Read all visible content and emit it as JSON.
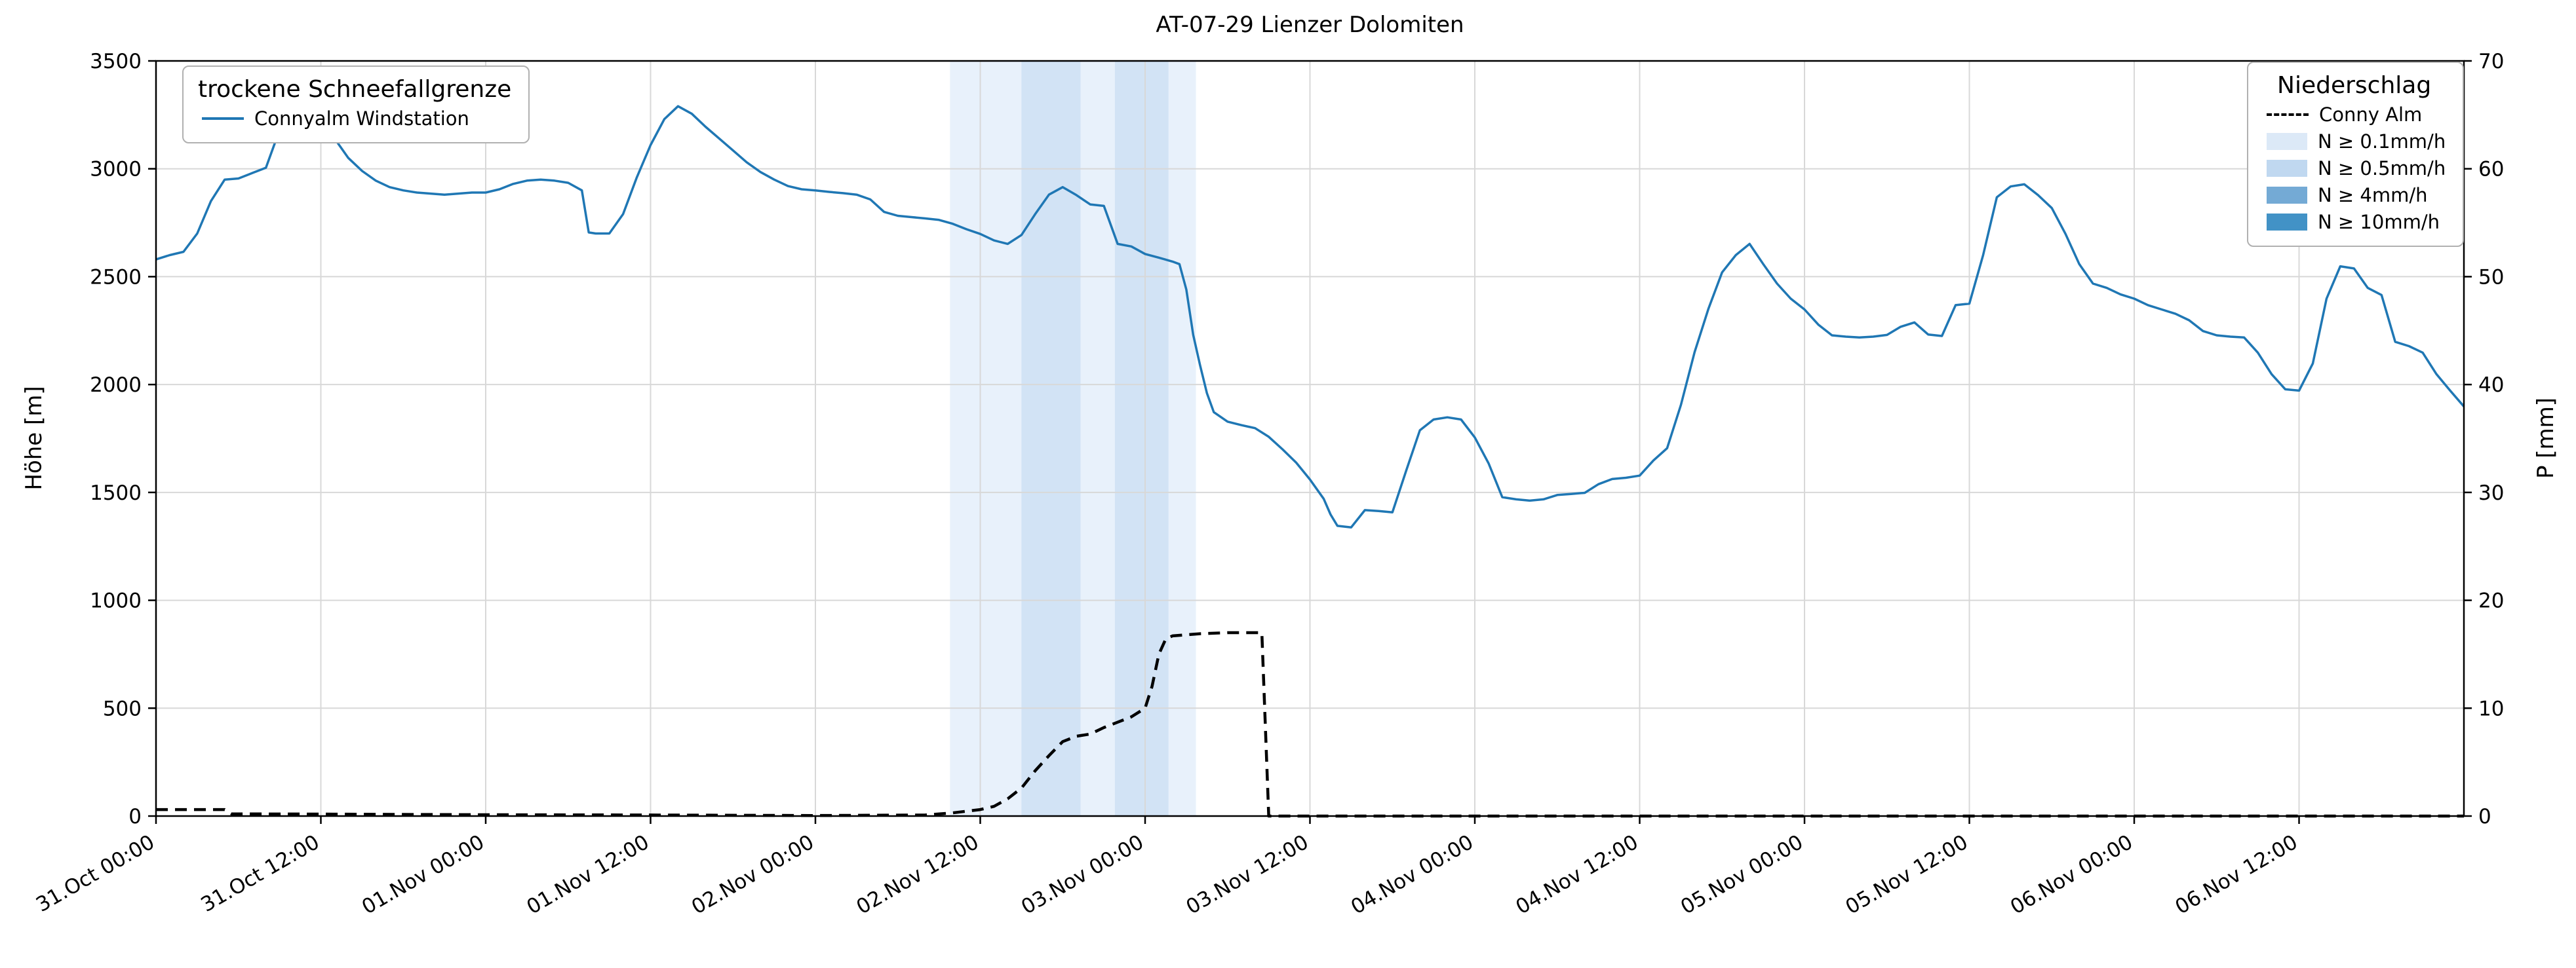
{
  "title": "AT-07-29 Lienzer Dolomiten",
  "axes": {
    "y_left_label": "Höhe [m]",
    "y_right_label": "P [mm]",
    "y_left_range": [
      0,
      3500
    ],
    "y_right_range": [
      0,
      70
    ],
    "x_range_hours": [
      0,
      168
    ],
    "y_left_ticks": [
      0,
      500,
      1000,
      1500,
      2000,
      2500,
      3000,
      3500
    ],
    "y_right_ticks": [
      0,
      10,
      20,
      30,
      40,
      50,
      60,
      70
    ],
    "x_ticks": [
      {
        "hour": 0,
        "label": "31.Oct 00:00"
      },
      {
        "hour": 12,
        "label": "31.Oct 12:00"
      },
      {
        "hour": 24,
        "label": "01.Nov 00:00"
      },
      {
        "hour": 36,
        "label": "01.Nov 12:00"
      },
      {
        "hour": 48,
        "label": "02.Nov 00:00"
      },
      {
        "hour": 60,
        "label": "02.Nov 12:00"
      },
      {
        "hour": 72,
        "label": "03.Nov 00:00"
      },
      {
        "hour": 84,
        "label": "03.Nov 12:00"
      },
      {
        "hour": 96,
        "label": "04.Nov 00:00"
      },
      {
        "hour": 108,
        "label": "04.Nov 12:00"
      },
      {
        "hour": 120,
        "label": "05.Nov 00:00"
      },
      {
        "hour": 132,
        "label": "05.Nov 12:00"
      },
      {
        "hour": 144,
        "label": "06.Nov 00:00"
      },
      {
        "hour": 156,
        "label": "06.Nov 12:00"
      }
    ]
  },
  "legend_left": {
    "title": "trockene Schneefallgrenze",
    "entries": [
      {
        "type": "line",
        "color": "#1f77b4",
        "label": "Connyalm Windstation"
      }
    ]
  },
  "legend_right": {
    "title": "Niederschlag",
    "entries": [
      {
        "type": "dashed-line",
        "color": "#000000",
        "label": "Conny Alm"
      },
      {
        "type": "patch",
        "color": "#dce9f7",
        "label": "N ≥ 0.1mm/h"
      },
      {
        "type": "patch",
        "color": "#c0d8f0",
        "label": "N ≥ 0.5mm/h"
      },
      {
        "type": "patch",
        "color": "#74aad5",
        "label": "N ≥ 4mm/h"
      },
      {
        "type": "patch",
        "color": "#4292c6",
        "label": "N ≥ 10mm/h"
      }
    ]
  },
  "colors": {
    "snowline": "#1f77b4",
    "precip_line": "#000000",
    "grid": "#d8d8d8",
    "spine": "#000000",
    "band_01": "#e8f1fb",
    "band_05": "#d2e3f5"
  },
  "chart_data": {
    "type": "line",
    "x_unit": "hours since 31.Oct 00:00",
    "series": [
      {
        "name": "Connyalm Windstation (trockene Schneefallgrenze)",
        "axis": "left",
        "style": "solid",
        "color": "#1f77b4",
        "ylabel": "Höhe [m]",
        "points": [
          [
            0,
            2580
          ],
          [
            1,
            2600
          ],
          [
            2,
            2615
          ],
          [
            3,
            2700
          ],
          [
            4,
            2850
          ],
          [
            5,
            2950
          ],
          [
            6,
            2955
          ],
          [
            7,
            2980
          ],
          [
            8,
            3005
          ],
          [
            9,
            3180
          ],
          [
            10,
            3460
          ],
          [
            11,
            3390
          ],
          [
            12,
            3280
          ],
          [
            13,
            3140
          ],
          [
            14,
            3050
          ],
          [
            15,
            2990
          ],
          [
            16,
            2945
          ],
          [
            17,
            2915
          ],
          [
            18,
            2900
          ],
          [
            19,
            2890
          ],
          [
            20,
            2885
          ],
          [
            21,
            2880
          ],
          [
            22,
            2885
          ],
          [
            23,
            2890
          ],
          [
            24,
            2890
          ],
          [
            25,
            2905
          ],
          [
            26,
            2930
          ],
          [
            27,
            2945
          ],
          [
            28,
            2950
          ],
          [
            29,
            2945
          ],
          [
            30,
            2935
          ],
          [
            31,
            2900
          ],
          [
            31.5,
            2705
          ],
          [
            32,
            2700
          ],
          [
            33,
            2700
          ],
          [
            34,
            2790
          ],
          [
            35,
            2960
          ],
          [
            36,
            3110
          ],
          [
            37,
            3230
          ],
          [
            38,
            3290
          ],
          [
            39,
            3255
          ],
          [
            40,
            3195
          ],
          [
            41,
            3140
          ],
          [
            42,
            3085
          ],
          [
            43,
            3030
          ],
          [
            44,
            2985
          ],
          [
            45,
            2950
          ],
          [
            46,
            2920
          ],
          [
            47,
            2905
          ],
          [
            48,
            2900
          ],
          [
            49,
            2893
          ],
          [
            50,
            2887
          ],
          [
            51,
            2880
          ],
          [
            52,
            2858
          ],
          [
            53,
            2800
          ],
          [
            54,
            2782
          ],
          [
            55,
            2776
          ],
          [
            56,
            2770
          ],
          [
            57,
            2763
          ],
          [
            58,
            2745
          ],
          [
            59,
            2720
          ],
          [
            60,
            2698
          ],
          [
            61,
            2668
          ],
          [
            62,
            2652
          ],
          [
            63,
            2693
          ],
          [
            64,
            2790
          ],
          [
            65,
            2880
          ],
          [
            66,
            2915
          ],
          [
            67,
            2878
          ],
          [
            68,
            2835
          ],
          [
            69,
            2828
          ],
          [
            70,
            2652
          ],
          [
            71,
            2640
          ],
          [
            72,
            2605
          ],
          [
            73,
            2588
          ],
          [
            74,
            2570
          ],
          [
            74.5,
            2558
          ],
          [
            75,
            2440
          ],
          [
            75.5,
            2230
          ],
          [
            76,
            2090
          ],
          [
            76.5,
            1960
          ],
          [
            77,
            1872
          ],
          [
            78,
            1828
          ],
          [
            79,
            1812
          ],
          [
            80,
            1798
          ],
          [
            81,
            1758
          ],
          [
            82,
            1700
          ],
          [
            83,
            1638
          ],
          [
            84,
            1560
          ],
          [
            85,
            1470
          ],
          [
            85.5,
            1398
          ],
          [
            86,
            1345
          ],
          [
            87,
            1338
          ],
          [
            88,
            1418
          ],
          [
            89,
            1414
          ],
          [
            90,
            1408
          ],
          [
            91,
            1600
          ],
          [
            92,
            1788
          ],
          [
            93,
            1838
          ],
          [
            94,
            1848
          ],
          [
            95,
            1838
          ],
          [
            96,
            1755
          ],
          [
            97,
            1635
          ],
          [
            98,
            1478
          ],
          [
            99,
            1468
          ],
          [
            100,
            1462
          ],
          [
            101,
            1468
          ],
          [
            102,
            1488
          ],
          [
            103,
            1493
          ],
          [
            104,
            1498
          ],
          [
            105,
            1538
          ],
          [
            106,
            1562
          ],
          [
            107,
            1568
          ],
          [
            108,
            1578
          ],
          [
            109,
            1648
          ],
          [
            110,
            1705
          ],
          [
            111,
            1905
          ],
          [
            112,
            2150
          ],
          [
            113,
            2350
          ],
          [
            114,
            2520
          ],
          [
            115,
            2600
          ],
          [
            116,
            2652
          ],
          [
            117,
            2558
          ],
          [
            118,
            2468
          ],
          [
            119,
            2398
          ],
          [
            120,
            2348
          ],
          [
            121,
            2278
          ],
          [
            122,
            2228
          ],
          [
            123,
            2222
          ],
          [
            124,
            2218
          ],
          [
            125,
            2222
          ],
          [
            126,
            2230
          ],
          [
            127,
            2268
          ],
          [
            128,
            2288
          ],
          [
            129,
            2232
          ],
          [
            130,
            2225
          ],
          [
            131,
            2368
          ],
          [
            132,
            2375
          ],
          [
            133,
            2600
          ],
          [
            134,
            2868
          ],
          [
            135,
            2918
          ],
          [
            136,
            2928
          ],
          [
            137,
            2878
          ],
          [
            138,
            2818
          ],
          [
            139,
            2698
          ],
          [
            140,
            2558
          ],
          [
            141,
            2468
          ],
          [
            142,
            2448
          ],
          [
            143,
            2418
          ],
          [
            144,
            2398
          ],
          [
            145,
            2368
          ],
          [
            146,
            2348
          ],
          [
            147,
            2328
          ],
          [
            148,
            2298
          ],
          [
            149,
            2248
          ],
          [
            150,
            2228
          ],
          [
            151,
            2222
          ],
          [
            152,
            2218
          ],
          [
            153,
            2148
          ],
          [
            154,
            2048
          ],
          [
            155,
            1978
          ],
          [
            156,
            1972
          ],
          [
            157,
            2098
          ],
          [
            158,
            2398
          ],
          [
            159,
            2548
          ],
          [
            160,
            2538
          ],
          [
            161,
            2448
          ],
          [
            162,
            2415
          ],
          [
            163,
            2198
          ],
          [
            164,
            2178
          ],
          [
            165,
            2148
          ],
          [
            166,
            2048
          ],
          [
            167,
            1972
          ],
          [
            168,
            1898
          ]
        ]
      },
      {
        "name": "Conny Alm (Niederschlag)",
        "axis": "right",
        "style": "dashed",
        "color": "#000000",
        "ylabel": "P [mm]",
        "points": [
          [
            0,
            0.6
          ],
          [
            5,
            0.6
          ],
          [
            5.5,
            0.2
          ],
          [
            12,
            0.18
          ],
          [
            24,
            0.12
          ],
          [
            36,
            0.1
          ],
          [
            48,
            0.05
          ],
          [
            56,
            0.1
          ],
          [
            58,
            0.3
          ],
          [
            60,
            0.6
          ],
          [
            61,
            0.9
          ],
          [
            62,
            1.6
          ],
          [
            63,
            2.6
          ],
          [
            64,
            4.2
          ],
          [
            65,
            5.6
          ],
          [
            66,
            6.9
          ],
          [
            67,
            7.4
          ],
          [
            68,
            7.6
          ],
          [
            69,
            8.2
          ],
          [
            70,
            8.7
          ],
          [
            71,
            9.2
          ],
          [
            72,
            10.0
          ],
          [
            72.5,
            12.0
          ],
          [
            73,
            15.0
          ],
          [
            73.5,
            16.4
          ],
          [
            74,
            16.7
          ],
          [
            76,
            16.9
          ],
          [
            78,
            17.0
          ],
          [
            80.5,
            17.0
          ],
          [
            81,
            0.0
          ],
          [
            96,
            0.0
          ],
          [
            120,
            0.0
          ],
          [
            144,
            0.0
          ],
          [
            168,
            0.0
          ]
        ]
      }
    ],
    "precip_bands": [
      {
        "from_hour": 57.8,
        "to_hour": 75.7,
        "level": "N ≥ 0.1mm/h",
        "color": "#e8f1fb"
      },
      {
        "from_hour": 63.0,
        "to_hour": 67.3,
        "level": "N ≥ 0.5mm/h",
        "color": "#d2e3f5"
      },
      {
        "from_hour": 69.8,
        "to_hour": 73.7,
        "level": "N ≥ 0.5mm/h",
        "color": "#d2e3f5"
      }
    ]
  }
}
